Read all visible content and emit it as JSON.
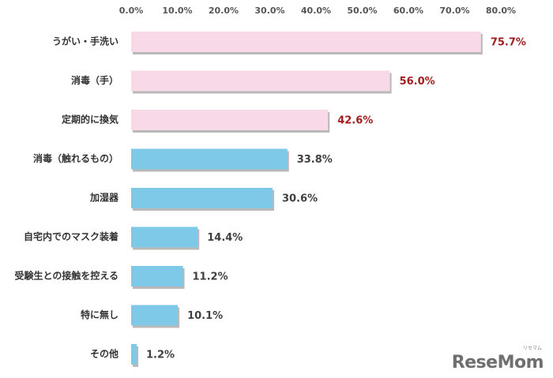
{
  "chart_data": {
    "type": "bar",
    "orientation": "horizontal",
    "categories": [
      "うがい・手洗い",
      "消毒（手）",
      "定期的に換気",
      "消毒（触れるもの）",
      "加湿器",
      "自宅内でのマスク装着",
      "受験生との接触を控える",
      "特に無し",
      "その他"
    ],
    "values": [
      75.7,
      56.0,
      42.6,
      33.8,
      30.6,
      14.4,
      11.2,
      10.1,
      1.2
    ],
    "value_labels": [
      "75.7%",
      "56.0%",
      "42.6%",
      "33.8%",
      "30.6%",
      "14.4%",
      "11.2%",
      "10.1%",
      "1.2%"
    ],
    "xaxis_ticks": [
      "0.0%",
      "10.0%",
      "20.0%",
      "30.0%",
      "40.0%",
      "50.0%",
      "60.0%",
      "70.0%",
      "80.0%"
    ],
    "xlim": [
      0,
      80
    ],
    "axis_position": "top",
    "grid": false,
    "highlight_count": 3,
    "colors": {
      "highlight_bar": "#f8d9e7",
      "normal_bar": "#7fc9e8",
      "highlight_label": "#a01e1e",
      "normal_label": "#404040",
      "shadow": "#b9b9b9"
    }
  },
  "logo": {
    "text": "ReseMom",
    "small_text": "リセマム"
  }
}
